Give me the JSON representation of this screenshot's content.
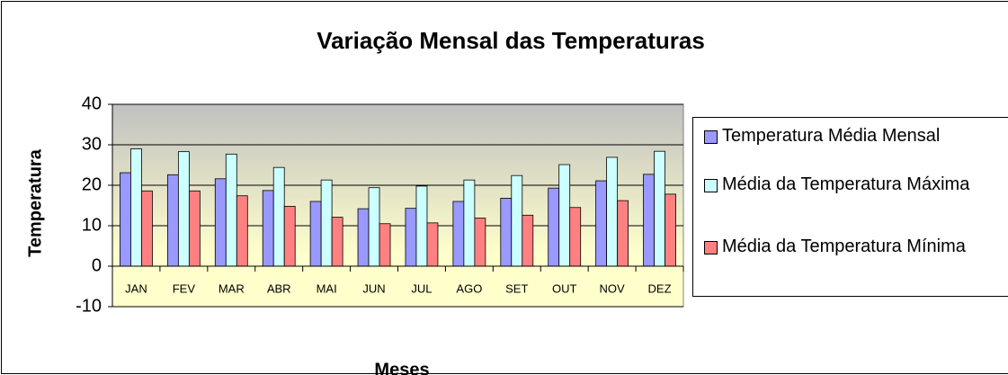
{
  "chart_data": {
    "type": "bar",
    "title": "Variação Mensal das Temperaturas",
    "x_label": "Meses",
    "y_label": "Temperatura",
    "categories": [
      "JAN",
      "FEV",
      "MAR",
      "ABR",
      "MAI",
      "JUN",
      "JUL",
      "AGO",
      "SET",
      "OUT",
      "NOV",
      "DEZ"
    ],
    "series": [
      {
        "name": "Temperatura Média Mensal",
        "color": "#9999ff",
        "values": [
          23.1,
          22.6,
          21.6,
          18.7,
          16.0,
          14.2,
          14.3,
          16.0,
          16.8,
          19.3,
          21.1,
          22.7
        ]
      },
      {
        "name": "Média da Temperatura Máxima",
        "color": "#ccffff",
        "values": [
          29.0,
          28.3,
          27.7,
          24.4,
          21.3,
          19.4,
          19.8,
          21.3,
          22.4,
          25.1,
          26.9,
          28.4
        ]
      },
      {
        "name": "Média da Temperatura Mínima",
        "color": "#ff8080",
        "values": [
          18.6,
          18.6,
          17.4,
          14.8,
          12.1,
          10.5,
          10.7,
          11.9,
          12.6,
          14.5,
          16.2,
          17.8
        ]
      }
    ],
    "ylim": [
      -10,
      40
    ],
    "yticks": [
      -10,
      0,
      10,
      20,
      30,
      40
    ],
    "grid": true,
    "legend": "right"
  }
}
